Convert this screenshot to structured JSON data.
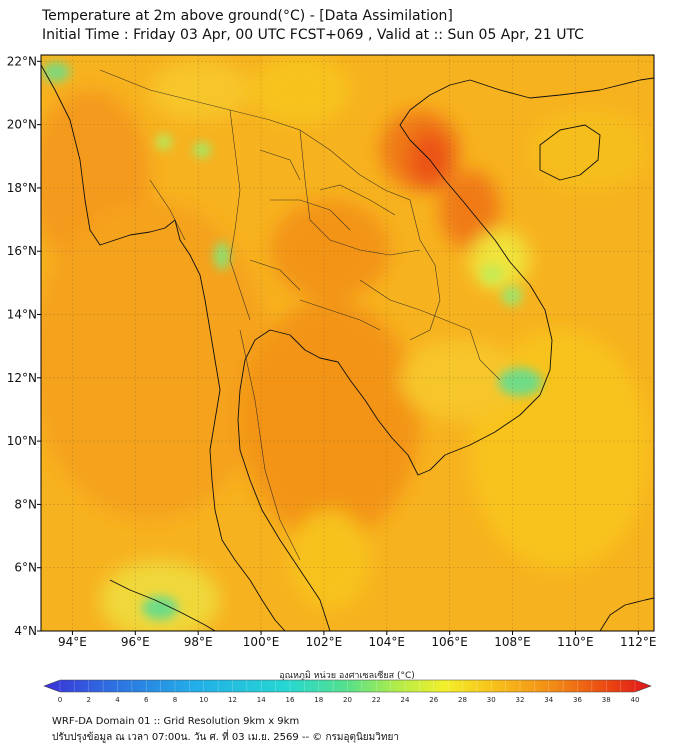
{
  "header": {
    "title": "Temperature at 2m above ground(°C) - [Data Assimilation]",
    "subtitle": "Initial Time : Friday 03 Apr, 00 UTC FCST+069 , Valid at :: Sun 05 Apr, 21 UTC"
  },
  "map": {
    "lat_labels": [
      "22°N",
      "20°N",
      "18°N",
      "16°N",
      "14°N",
      "12°N",
      "10°N",
      "8°N",
      "6°N",
      "4°N"
    ],
    "lon_labels": [
      "94°E",
      "96°E",
      "98°E",
      "100°E",
      "102°E",
      "104°E",
      "106°E",
      "108°E",
      "110°E",
      "112°E"
    ],
    "lat_range": [
      4,
      22.2
    ],
    "lon_range": [
      93,
      112.5
    ],
    "background_color": "#f7b21f"
  },
  "colorbar": {
    "label": "อุณหภูมิ หน่วย องศาเซลเซียส (°C)",
    "min": 0,
    "max": 40,
    "tick_labels": [
      "0",
      "2",
      "4",
      "6",
      "8",
      "10",
      "12",
      "14",
      "16",
      "18",
      "20",
      "22",
      "24",
      "26",
      "28",
      "30",
      "32",
      "34",
      "36",
      "38",
      "40"
    ],
    "colors": [
      "#3a2fd6",
      "#2f6ae0",
      "#22aee8",
      "#26d7d2",
      "#56e08a",
      "#b0ec4a",
      "#f3ef2a",
      "#f7c21a",
      "#f28a16",
      "#ea4712",
      "#e0141a"
    ]
  },
  "footer": {
    "line1": "WRF-DA Domain 01 :: Grid Resolution 9km x 9km",
    "line2": "ปรับปรุงข้อมูล ณ เวลา 07:00น. วัน ศ. ที่ 03 เม.ย. 2569 -- © กรมอุตุนิยมวิทยา"
  }
}
